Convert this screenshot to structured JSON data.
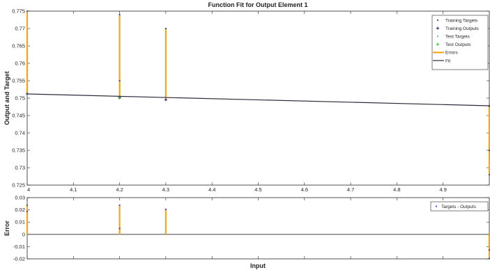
{
  "chart_data": [
    {
      "type": "line",
      "title": "Function Fit for Output Element 1",
      "xlabel": "",
      "ylabel": "Output and Target",
      "xlim": [
        4,
        5
      ],
      "ylim": [
        0.725,
        0.775
      ],
      "xticks": [
        "4",
        "4.1",
        "4.2",
        "4.3",
        "4.4",
        "4.5",
        "4.6",
        "4.7",
        "4.8",
        "4.9"
      ],
      "yticks": [
        "0.725",
        "0.73",
        "0.735",
        "0.74",
        "0.745",
        "0.75",
        "0.755",
        "0.76",
        "0.765",
        "0.77",
        "0.775"
      ],
      "grid": false,
      "legend_position": "top-right",
      "legend": [
        "Training Targets",
        "Training Outputs",
        "Test Targets",
        "Test Outputs",
        "Errors",
        "Fit"
      ],
      "colors": {
        "training_targets": "#3b3bb5",
        "training_outputs": "#1a1a7a",
        "test_targets": "#5ab0d0",
        "test_outputs": "#2cc02c",
        "errors": "#f0a818",
        "fit": "#2b2b3b"
      },
      "fit_line": {
        "x": [
          4.0,
          5.0
        ],
        "y": [
          0.7512,
          0.7478
        ]
      },
      "errors": [
        {
          "x": 4.0,
          "target": 0.775,
          "output": 0.7512
        },
        {
          "x": 4.0,
          "target": 0.77,
          "output": 0.7512
        },
        {
          "x": 4.2,
          "target": 0.774,
          "output": 0.7502
        },
        {
          "x": 4.2,
          "target": 0.755,
          "output": 0.7502
        },
        {
          "x": 4.3,
          "target": 0.77,
          "output": 0.7495
        },
        {
          "x": 5.0,
          "target": 0.728,
          "output": 0.7478
        },
        {
          "x": 5.0,
          "target": 0.735,
          "output": 0.7478
        }
      ],
      "training_target_points": [
        {
          "x": 4.0,
          "y": 0.775
        },
        {
          "x": 4.2,
          "y": 0.774
        },
        {
          "x": 4.2,
          "y": 0.755
        },
        {
          "x": 4.3,
          "y": 0.77
        },
        {
          "x": 5.0,
          "y": 0.728
        },
        {
          "x": 5.0,
          "y": 0.735
        }
      ],
      "training_output_points": [
        {
          "x": 4.0,
          "y": 0.7512
        },
        {
          "x": 4.2,
          "y": 0.7502
        },
        {
          "x": 4.3,
          "y": 0.7495
        },
        {
          "x": 5.0,
          "y": 0.7478
        }
      ],
      "test_output_points": [
        {
          "x": 4.2,
          "y": 0.75
        }
      ]
    },
    {
      "type": "line",
      "title": "",
      "xlabel": "Input",
      "ylabel": "Error",
      "xlim": [
        4,
        5
      ],
      "ylim": [
        -0.02,
        0.03
      ],
      "yticks": [
        "-0.02",
        "-0.01",
        "0",
        "0.01",
        "0.02",
        "0.03"
      ],
      "grid": false,
      "legend_position": "top-right",
      "legend": [
        "Targets - Outputs"
      ],
      "zero_line": true,
      "series": [
        {
          "name": "Targets - Outputs",
          "x": [
            4.0,
            4.0,
            4.2,
            4.2,
            4.3,
            5.0,
            5.0
          ],
          "values": [
            0.0238,
            0.0188,
            0.0238,
            0.0048,
            0.0205,
            -0.0198,
            -0.0128
          ]
        }
      ]
    }
  ]
}
